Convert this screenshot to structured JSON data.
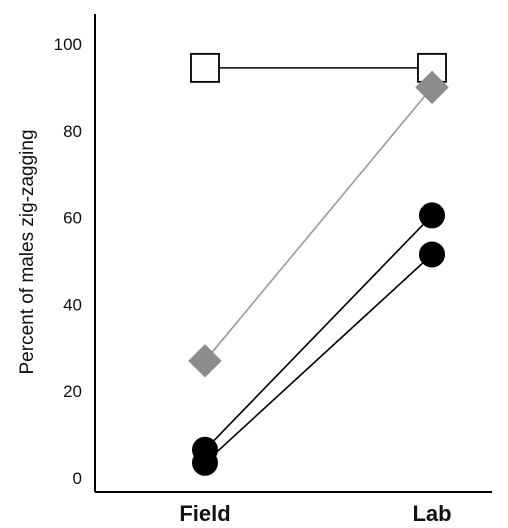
{
  "chart_data": {
    "type": "line",
    "categories": [
      "Field",
      "Lab"
    ],
    "xlabel": "",
    "ylabel": "Percent of males zig-zagging",
    "ylim": [
      0,
      100
    ],
    "yticks": [
      0,
      20,
      40,
      60,
      80,
      100
    ],
    "grid": false,
    "series": [
      {
        "marker": "square",
        "values": [
          94.5,
          94.5
        ],
        "line_color": "#000000",
        "marker_fill": "#ffffff",
        "marker_stroke": "#000000"
      },
      {
        "marker": "diamond",
        "values": [
          27,
          90
        ],
        "line_color": "#9a9a9a",
        "marker_fill": "#8c8c8c",
        "marker_stroke": "#8c8c8c"
      },
      {
        "marker": "circle",
        "values": [
          6.5,
          60.5
        ],
        "line_color": "#000000",
        "marker_fill": "#000000",
        "marker_stroke": "#000000"
      },
      {
        "marker": "circle",
        "values": [
          3.5,
          51.5
        ],
        "line_color": "#000000",
        "marker_fill": "#000000",
        "marker_stroke": "#000000"
      }
    ]
  }
}
